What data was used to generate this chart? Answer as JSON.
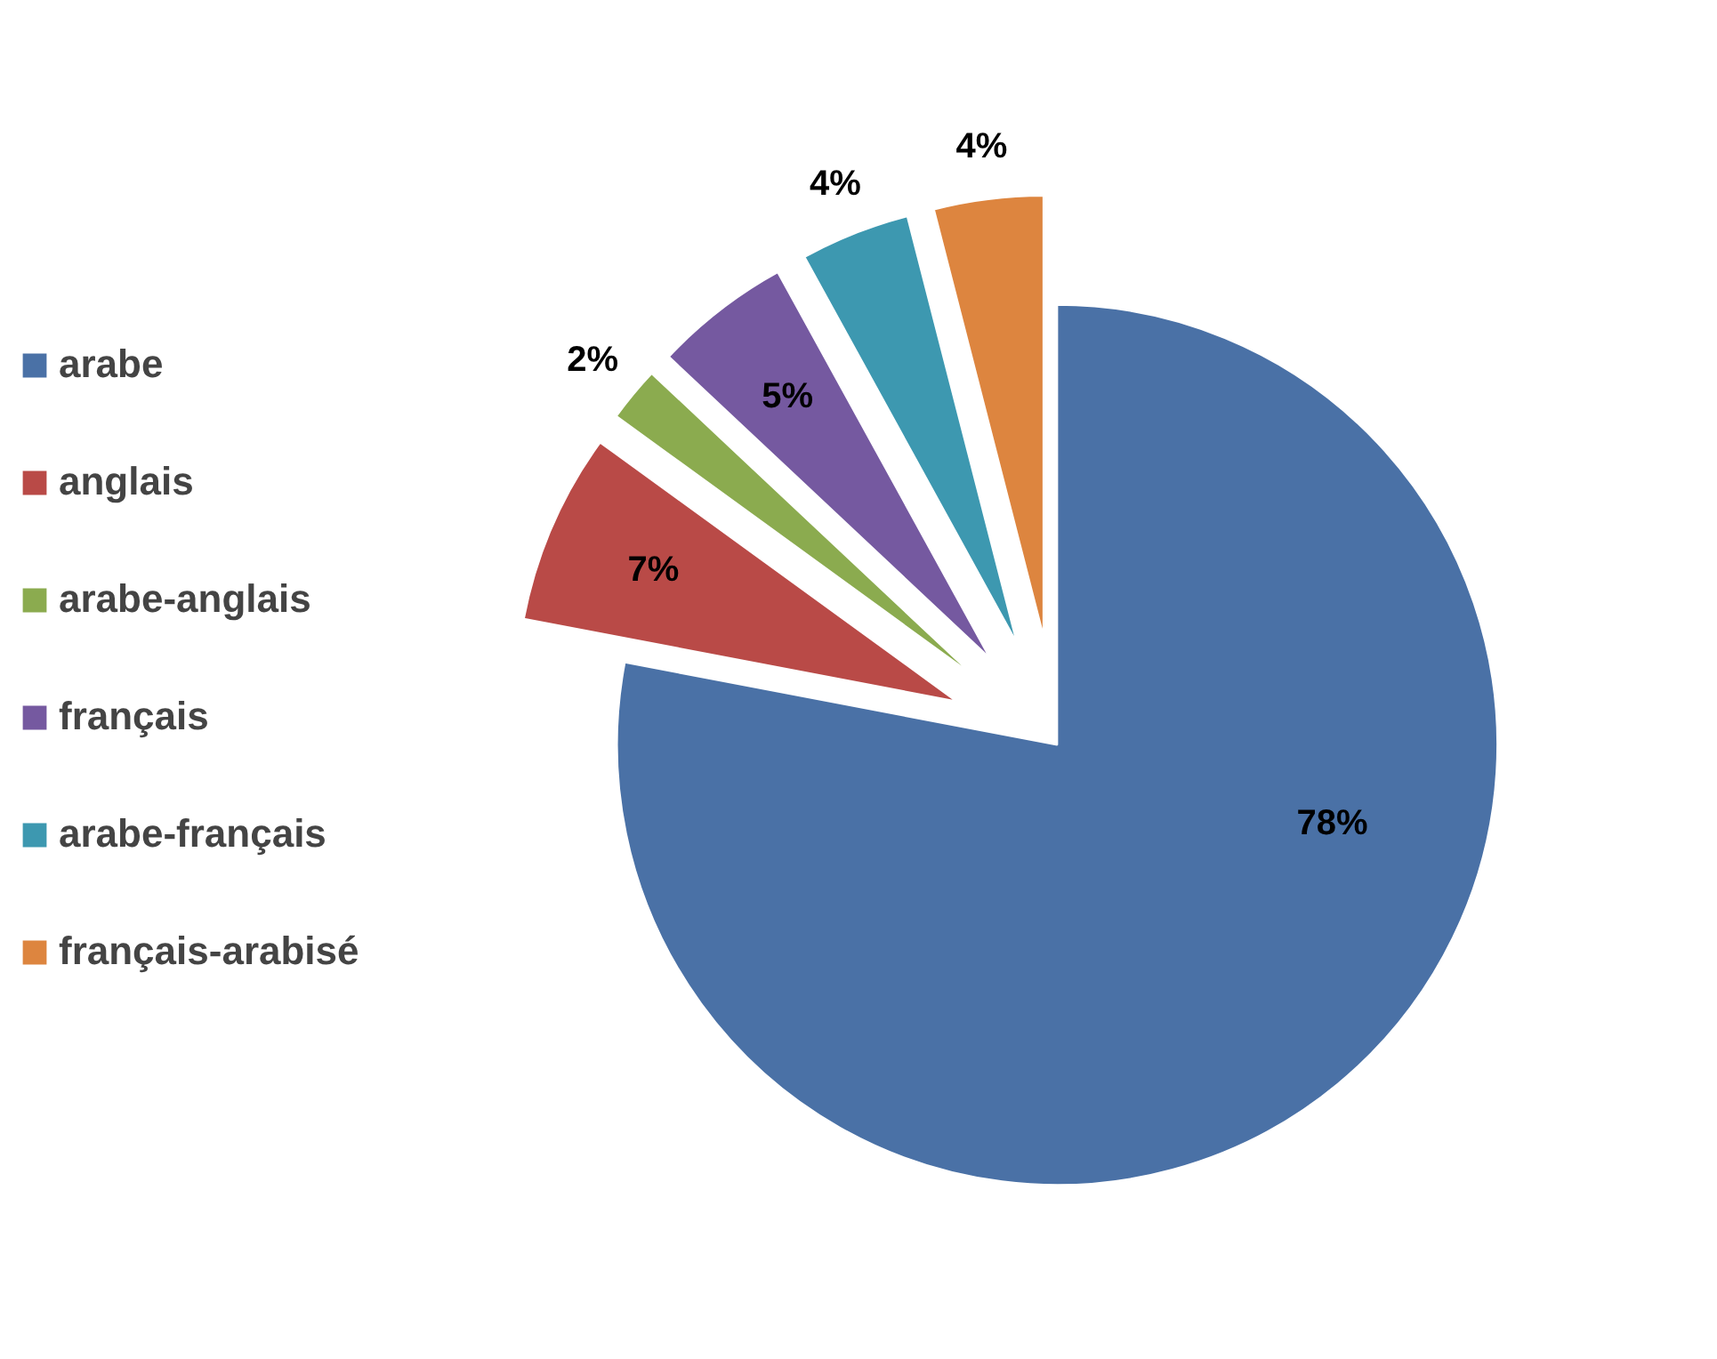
{
  "chart_data": {
    "type": "pie",
    "categories": [
      "arabe",
      "anglais",
      "arabe-anglais",
      "français",
      "arabe-français",
      "français-arabisé"
    ],
    "values": [
      78,
      7,
      2,
      5,
      4,
      4
    ],
    "colors": [
      "#4a71a6",
      "#b94a47",
      "#8bab4f",
      "#7559a0",
      "#3d98b0",
      "#dd853f"
    ],
    "value_labels": [
      "78%",
      "7%",
      "2%",
      "5%",
      "4%",
      "4%"
    ],
    "legend": "left"
  }
}
